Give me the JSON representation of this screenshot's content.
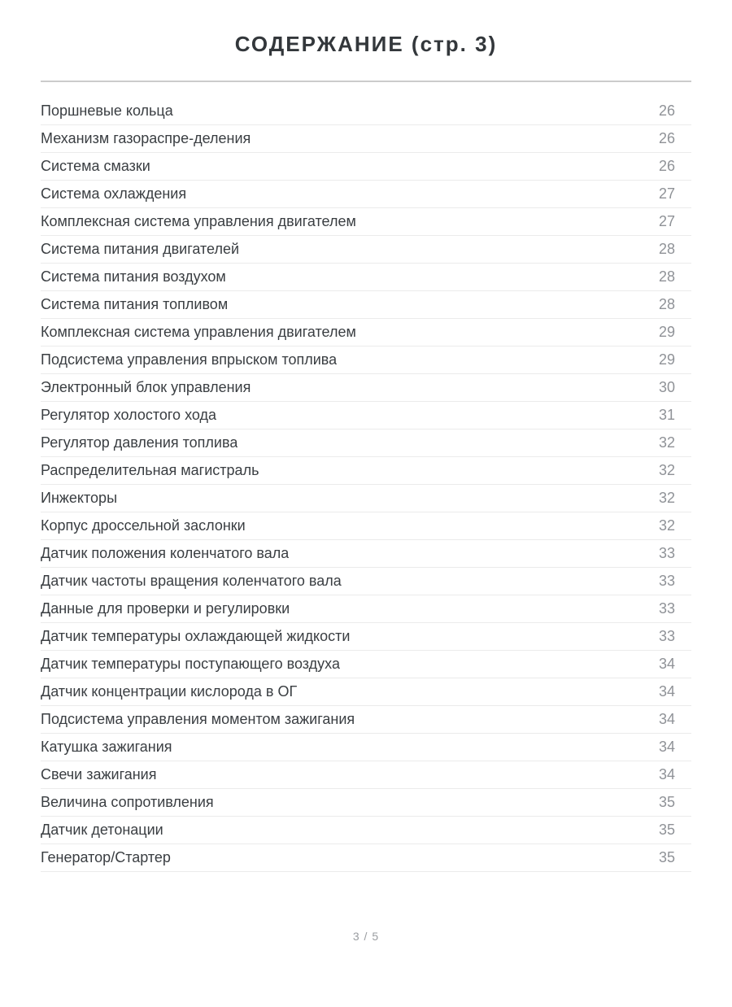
{
  "header": {
    "title": "СОДЕРЖАНИЕ (стр. 3)"
  },
  "toc": {
    "entries": [
      {
        "label": "Поршневые кольца",
        "page": "26"
      },
      {
        "label": "Механизм газораспре-деления",
        "page": "26"
      },
      {
        "label": "Система смазки",
        "page": "26"
      },
      {
        "label": "Система охлаждения",
        "page": "27"
      },
      {
        "label": "Комплексная система управления двигателем",
        "page": "27"
      },
      {
        "label": "Система питания двигателей",
        "page": "28"
      },
      {
        "label": "Система питания воздухом",
        "page": "28"
      },
      {
        "label": "Система питания топливом",
        "page": "28"
      },
      {
        "label": "Комплексная система управления двигателем",
        "page": "29"
      },
      {
        "label": "Подсистема управления впрыском топлива",
        "page": "29"
      },
      {
        "label": "Электронный блок управления",
        "page": "30"
      },
      {
        "label": "Регулятор холостого хода",
        "page": "31"
      },
      {
        "label": "Регулятор давления топлива",
        "page": "32"
      },
      {
        "label": "Распределительная магистраль",
        "page": "32"
      },
      {
        "label": "Инжекторы",
        "page": "32"
      },
      {
        "label": "Корпус дроссельной заслонки",
        "page": "32"
      },
      {
        "label": "Датчик положения коленчатого вала",
        "page": "33"
      },
      {
        "label": "Датчик частоты вращения коленчатого вала",
        "page": "33"
      },
      {
        "label": "Данные для проверки и регулировки",
        "page": "33"
      },
      {
        "label": "Датчик температуры охлаждающей жидкости",
        "page": "33"
      },
      {
        "label": "Датчик температуры поступающего воздуха",
        "page": "34"
      },
      {
        "label": "Датчик концентрации кислорода в ОГ",
        "page": "34"
      },
      {
        "label": "Подсистема управления моментом зажигания",
        "page": "34"
      },
      {
        "label": "Катушка зажигания",
        "page": "34"
      },
      {
        "label": "Свечи зажигания",
        "page": "34"
      },
      {
        "label": "Величина сопротивления",
        "page": "35"
      },
      {
        "label": "Датчик детонации",
        "page": "35"
      },
      {
        "label": "Генератор/Стартер",
        "page": "35"
      }
    ]
  },
  "footer": {
    "page_indicator": "3 / 5"
  },
  "colors": {
    "title_text": "#33373b",
    "entry_text": "#3a3e42",
    "page_number_text": "#8f9297",
    "header_rule": "#cbcbcb",
    "row_divider": "#ebebeb",
    "background": "#ffffff"
  }
}
